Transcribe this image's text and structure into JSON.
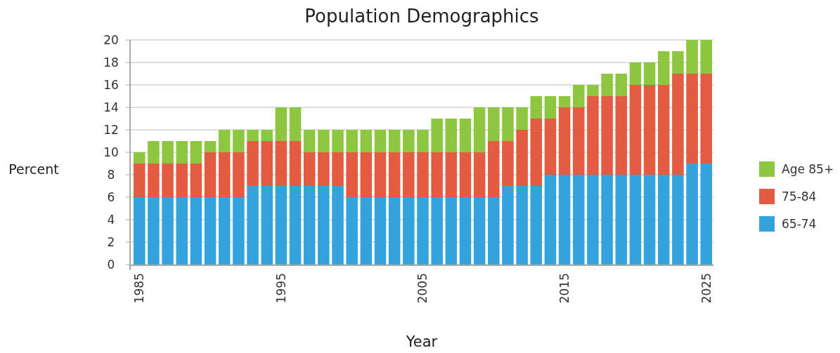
{
  "chart_data": {
    "type": "bar",
    "title": "Population Demographics",
    "xlabel": "Year",
    "ylabel": "Percent",
    "categories": [
      "1985",
      null,
      null,
      null,
      null,
      null,
      null,
      null,
      null,
      null,
      "1995",
      null,
      null,
      null,
      null,
      null,
      null,
      null,
      null,
      null,
      "2005",
      null,
      null,
      null,
      null,
      null,
      null,
      null,
      null,
      null,
      "2015",
      null,
      null,
      null,
      null,
      null,
      null,
      null,
      null,
      null,
      "2025"
    ],
    "stacked": true,
    "series": [
      {
        "name": "65-74",
        "color": "#35a3db",
        "values": [
          6,
          6,
          6,
          6,
          6,
          6,
          6,
          6,
          7,
          7,
          7,
          7,
          7,
          7,
          7,
          6,
          6,
          6,
          6,
          6,
          6,
          6,
          6,
          6,
          6,
          6,
          7,
          7,
          7,
          8,
          8,
          8,
          8,
          8,
          8,
          8,
          8,
          8,
          8,
          9,
          9
        ]
      },
      {
        "name": "75-84",
        "color": "#e35b40",
        "values": [
          3,
          3,
          3,
          3,
          3,
          4,
          4,
          4,
          4,
          4,
          4,
          4,
          3,
          3,
          3,
          4,
          4,
          4,
          4,
          4,
          4,
          4,
          4,
          4,
          4,
          5,
          4,
          5,
          6,
          5,
          6,
          6,
          7,
          7,
          7,
          8,
          8,
          8,
          9,
          8,
          8
        ]
      },
      {
        "name": "Age 85+",
        "color": "#8dc63f",
        "values": [
          1,
          2,
          2,
          2,
          2,
          1,
          2,
          2,
          1,
          1,
          3,
          3,
          2,
          2,
          2,
          2,
          2,
          2,
          2,
          2,
          2,
          3,
          3,
          3,
          4,
          3,
          3,
          2,
          2,
          2,
          1,
          2,
          1,
          2,
          2,
          2,
          2,
          3,
          2,
          3,
          3
        ]
      }
    ],
    "ylim": [
      0,
      20
    ],
    "yticks": [
      0,
      2,
      4,
      6,
      8,
      10,
      12,
      14,
      16,
      18,
      20
    ],
    "grid": "y",
    "legend": "right"
  }
}
